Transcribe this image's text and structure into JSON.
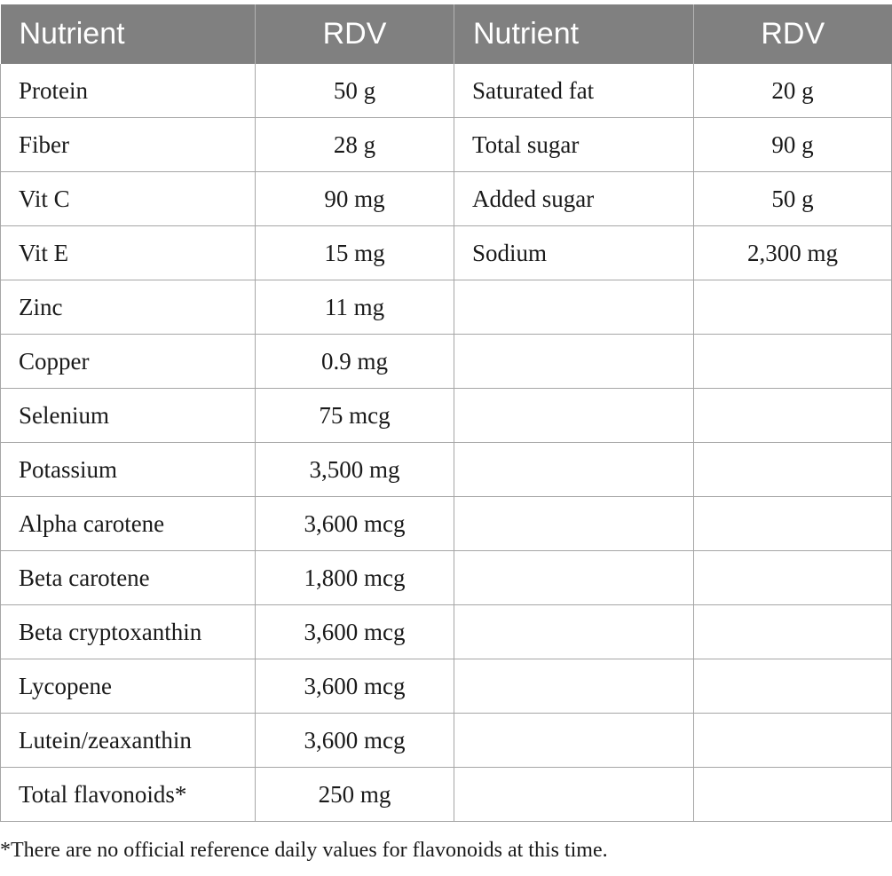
{
  "table": {
    "headers": [
      "Nutrient",
      "RDV",
      "Nutrient",
      "RDV"
    ],
    "rows": [
      [
        "Protein",
        "50 g",
        "Saturated fat",
        "20 g"
      ],
      [
        "Fiber",
        "28 g",
        "Total sugar",
        "90 g"
      ],
      [
        "Vit C",
        "90 mg",
        "Added sugar",
        "50 g"
      ],
      [
        "Vit E",
        "15 mg",
        "Sodium",
        "2,300 mg"
      ],
      [
        "Zinc",
        "11 mg",
        "",
        ""
      ],
      [
        "Copper",
        "0.9 mg",
        "",
        ""
      ],
      [
        "Selenium",
        "75 mcg",
        "",
        ""
      ],
      [
        "Potassium",
        "3,500 mg",
        "",
        ""
      ],
      [
        "Alpha carotene",
        "3,600 mcg",
        "",
        ""
      ],
      [
        "Beta carotene",
        "1,800 mcg",
        "",
        ""
      ],
      [
        "Beta cryptoxanthin",
        "3,600 mcg",
        "",
        ""
      ],
      [
        "Lycopene",
        "3,600 mcg",
        "",
        ""
      ],
      [
        "Lutein/zeaxanthin",
        "3,600 mcg",
        "",
        ""
      ],
      [
        "Total flavonoids*",
        "250 mg",
        "",
        ""
      ]
    ]
  },
  "footnote": "*There are no official reference daily values for flavonoids at this time.",
  "colors": {
    "header_bg": "#808080",
    "header_text": "#ffffff",
    "grid": "#a6a6a6"
  }
}
